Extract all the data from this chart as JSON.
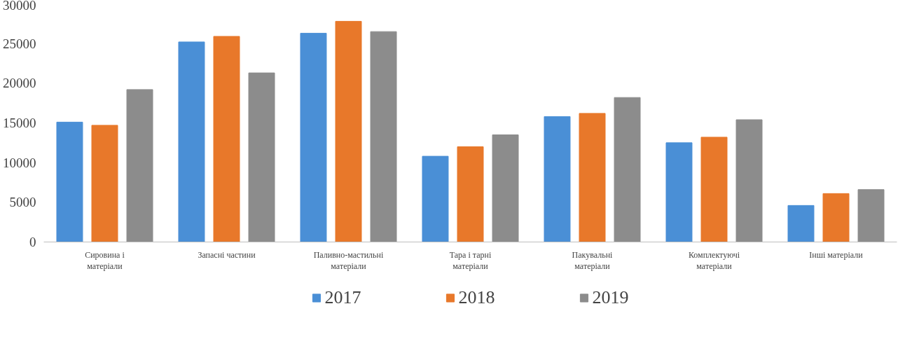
{
  "chart_data": {
    "type": "bar",
    "categories": [
      "Сировина і матеріали",
      "Запасні частини",
      "Паливно-мастильні матеріали",
      "Тара і тарні матеріали",
      "Пакувальні матеріали",
      "Комплектуючі матеріали",
      "Інші матеріали"
    ],
    "series": [
      {
        "name": "2017",
        "color": "#4a8fd6",
        "values": [
          15100,
          25200,
          26300,
          10800,
          15800,
          12500,
          4600
        ]
      },
      {
        "name": "2018",
        "color": "#e8782a",
        "values": [
          14700,
          25900,
          27800,
          12000,
          16200,
          13200,
          6100
        ]
      },
      {
        "name": "2019",
        "color": "#8c8c8c",
        "values": [
          19200,
          21300,
          26500,
          13500,
          18200,
          15400,
          6600
        ]
      }
    ],
    "ylim": [
      0,
      30000
    ],
    "yticks": [
      0,
      5000,
      10000,
      15000,
      20000,
      25000,
      30000
    ],
    "grid": false,
    "legend": "bottom"
  }
}
